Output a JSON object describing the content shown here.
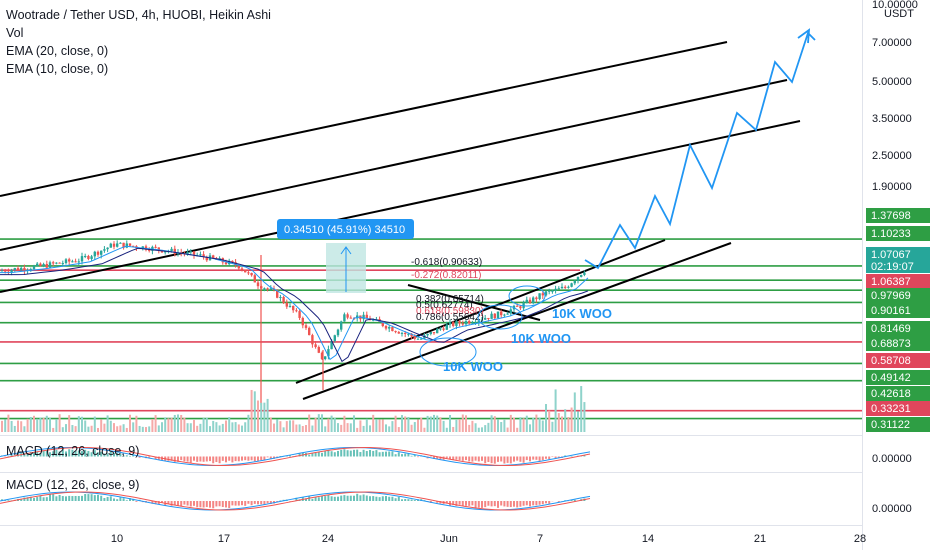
{
  "header": {
    "title": "Wootrade / Tether USD, 4h, HUOBI, Heikin Ashi",
    "indicators": [
      "Vol",
      "EMA (20, close, 0)",
      "EMA (10, close, 0)"
    ]
  },
  "currency": "USDT",
  "macd_labels": [
    "MACD (12, 26, close, 9)",
    "MACD (12, 26, close, 9)"
  ],
  "macd_values": [
    "0.00000",
    "0.00000"
  ],
  "measure_label": "0.34510 (45.91%) 34510",
  "annotations": [
    "10K WOO",
    "10K WOO",
    "10K WOO"
  ],
  "fib_labels": [
    "-0.618(0.90633)",
    "-0.272(0.82011)",
    "0.382(0.65714)",
    "0.5(0.62774)",
    "0.618(0.59830)",
    "0.786(0.55642)"
  ],
  "colors": {
    "green_line": "#2e9e44",
    "red_line": "#e0465c",
    "projection": "#2196f3",
    "candle_up": "#26a69a",
    "candle_down": "#ef5350",
    "current_price_bg": "#26a69a"
  },
  "chart_data": {
    "type": "candlestick",
    "scale": "log",
    "x_ticks": [
      "10",
      "17",
      "24",
      "Jun",
      "7",
      "14",
      "21",
      "28"
    ],
    "y_ticks": [
      "10.00000",
      "7.00000",
      "5.00000",
      "3.50000",
      "2.50000",
      "1.90000"
    ],
    "price_labels": [
      {
        "value": "1.37698",
        "color": "#2e9e44"
      },
      {
        "value": "1.10233",
        "color": "#2e9e44"
      },
      {
        "value": "1.07067",
        "color": "#26a69a",
        "sub": "02:19:07"
      },
      {
        "value": "1.06387",
        "color": "#e0465c"
      },
      {
        "value": "0.97969",
        "color": "#2e9e44"
      },
      {
        "value": "0.90161",
        "color": "#2e9e44"
      },
      {
        "value": "0.81469",
        "color": "#2e9e44"
      },
      {
        "value": "0.68873",
        "color": "#2e9e44"
      },
      {
        "value": "0.58708",
        "color": "#e0465c"
      },
      {
        "value": "0.49142",
        "color": "#2e9e44"
      },
      {
        "value": "0.42618",
        "color": "#2e9e44"
      },
      {
        "value": "0.33231",
        "color": "#e0465c"
      },
      {
        "value": "0.31122",
        "color": "#2e9e44"
      }
    ],
    "current_price": 1.07067,
    "countdown": "02:19:07"
  }
}
